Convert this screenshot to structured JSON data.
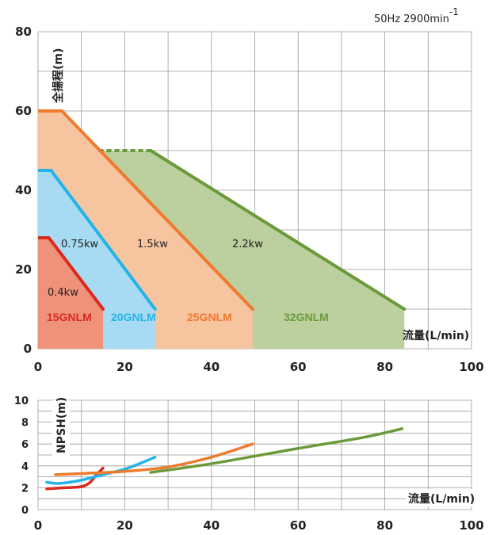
{
  "header": {
    "frequency": "50Hz 2900min",
    "exponent": "-1"
  },
  "colors": {
    "red": "#d92b20",
    "red_fill": "#f0917a",
    "blue": "#25b3e8",
    "blue_fill": "#a7dbf3",
    "orange": "#ee7a2e",
    "orange_fill": "#f7c4a0",
    "green": "#6b9a3a",
    "green_fill": "#bccf9e"
  },
  "chart_data": [
    {
      "type": "area",
      "title": "",
      "xlabel": "流量(L/min)",
      "ylabel": "全揚程(m)",
      "xlim": [
        0,
        100
      ],
      "ylim": [
        0,
        80
      ],
      "xticks": [
        "0",
        "20",
        "40",
        "60",
        "80",
        "100"
      ],
      "yticks": [
        "0",
        "20",
        "40",
        "60",
        "80"
      ],
      "grid": true,
      "series": [
        {
          "name": "15GNLM",
          "power": "0.4kw",
          "color": "red",
          "x": [
            0,
            2.5,
            15,
            15,
            0
          ],
          "y": [
            28,
            28,
            10,
            0,
            0
          ]
        },
        {
          "name": "20GNLM",
          "power": "0.75kw",
          "color": "blue",
          "x": [
            0,
            3,
            27,
            27,
            0
          ],
          "y": [
            45,
            45,
            10,
            0,
            0
          ]
        },
        {
          "name": "25GNLM",
          "power": "1.5kw",
          "color": "orange",
          "x": [
            0,
            5.5,
            49.5,
            49.5,
            0
          ],
          "y": [
            60,
            60,
            10,
            0,
            0
          ]
        },
        {
          "name": "32GNLM",
          "power": "2.2kw",
          "color": "green",
          "x": [
            14,
            26,
            84.5,
            84.5,
            14
          ],
          "y": [
            50,
            50,
            10,
            0,
            0
          ]
        }
      ]
    },
    {
      "type": "line",
      "title": "",
      "xlabel": "流量(L/min)",
      "ylabel": "NPSH(m)",
      "xlim": [
        0,
        100
      ],
      "ylim": [
        0,
        10
      ],
      "xticks": [
        "0",
        "20",
        "40",
        "60",
        "80",
        "100"
      ],
      "yticks": [
        "0",
        "2",
        "4",
        "6",
        "8",
        "10"
      ],
      "grid": true,
      "series": [
        {
          "color": "red",
          "x": [
            2,
            6,
            10,
            12,
            13.5,
            15
          ],
          "y": [
            1.9,
            2.0,
            2.1,
            2.5,
            3.2,
            3.8
          ]
        },
        {
          "color": "blue",
          "x": [
            2,
            5,
            10,
            15,
            20,
            24,
            27
          ],
          "y": [
            2.5,
            2.4,
            2.7,
            3.2,
            3.7,
            4.3,
            4.8
          ]
        },
        {
          "color": "orange",
          "x": [
            4,
            10,
            20,
            30,
            40,
            49.5
          ],
          "y": [
            3.2,
            3.3,
            3.5,
            3.9,
            4.8,
            6.0
          ]
        },
        {
          "color": "green",
          "x": [
            26,
            40,
            60,
            75,
            84
          ],
          "y": [
            3.4,
            4.2,
            5.6,
            6.6,
            7.4
          ]
        }
      ]
    }
  ]
}
